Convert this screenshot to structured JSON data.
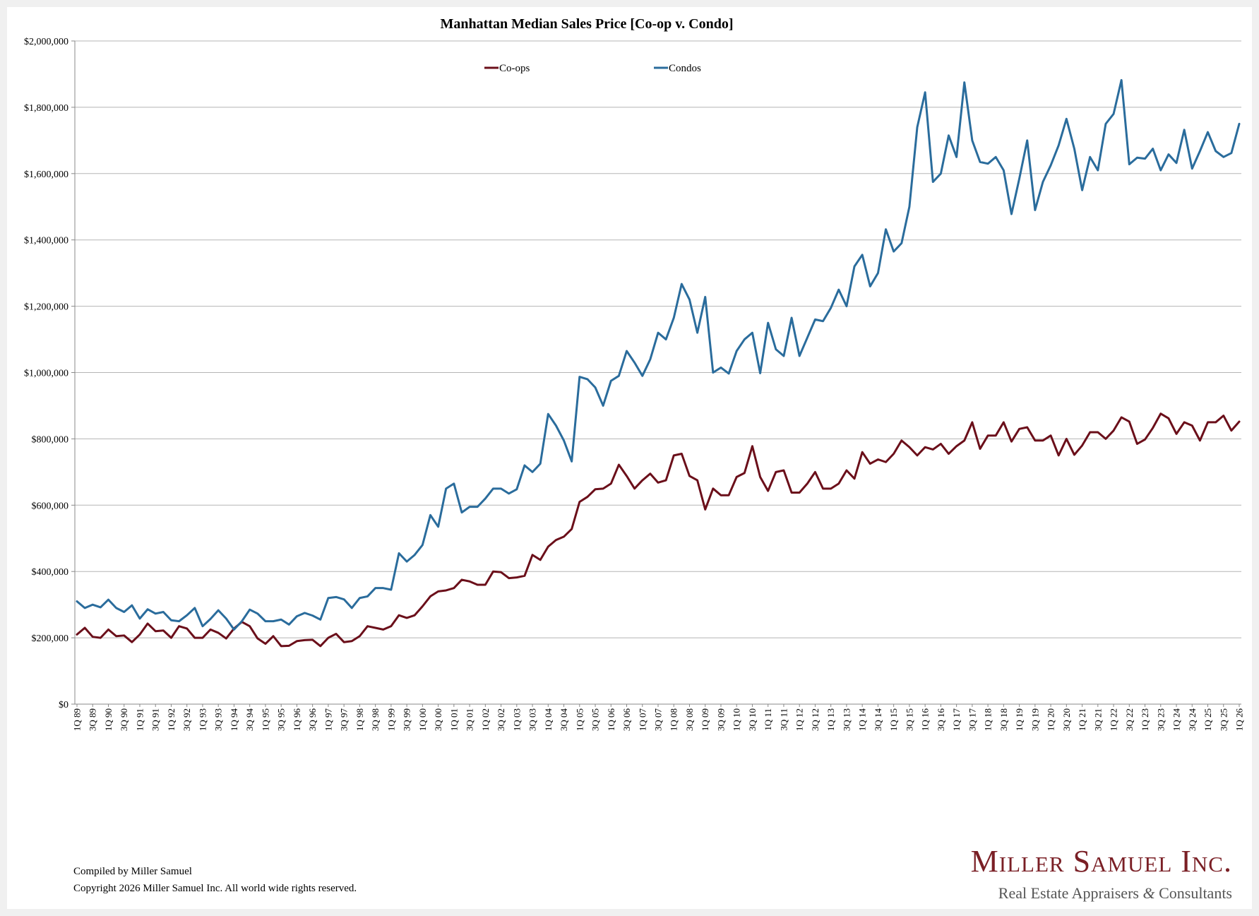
{
  "chart_data": {
    "type": "line",
    "title": "Manhattan Median Sales Price [Co-op v. Condo]",
    "xlabel": "",
    "ylabel": "",
    "ylim": [
      0,
      2000000
    ],
    "yticks": [
      0,
      200000,
      400000,
      600000,
      800000,
      1000000,
      1200000,
      1400000,
      1600000,
      1800000,
      2000000
    ],
    "ytick_labels": [
      "$0",
      "$200,000",
      "$400,000",
      "$600,000",
      "$800,000",
      "$1,000,000",
      "$1,200,000",
      "$1,400,000",
      "$1,600,000",
      "$1,800,000",
      "$2,000,000"
    ],
    "grid": true,
    "legend_position": "top-center",
    "categories": [
      "1Q 89",
      "2Q 89",
      "3Q 89",
      "4Q 89",
      "1Q 90",
      "2Q 90",
      "3Q 90",
      "4Q 90",
      "1Q 91",
      "2Q 91",
      "3Q 91",
      "4Q 91",
      "1Q 92",
      "2Q 92",
      "3Q 92",
      "4Q 92",
      "1Q 93",
      "2Q 93",
      "3Q 93",
      "4Q 93",
      "1Q 94",
      "2Q 94",
      "3Q 94",
      "4Q 94",
      "1Q 95",
      "2Q 95",
      "3Q 95",
      "4Q 95",
      "1Q 96",
      "2Q 96",
      "3Q 96",
      "4Q 96",
      "1Q 97",
      "2Q 97",
      "3Q 97",
      "4Q 97",
      "1Q 98",
      "2Q 98",
      "3Q 98",
      "4Q 98",
      "1Q 99",
      "2Q 99",
      "3Q 99",
      "4Q 99",
      "1Q 00",
      "2Q 00",
      "3Q 00",
      "4Q 00",
      "1Q 01",
      "2Q 01",
      "3Q 01",
      "4Q 01",
      "1Q 02",
      "2Q 02",
      "3Q 02",
      "4Q 02",
      "1Q 03",
      "2Q 03",
      "3Q 03",
      "4Q 03",
      "1Q 04",
      "2Q 04",
      "3Q 04",
      "4Q 04",
      "1Q 05",
      "2Q 05",
      "3Q 05",
      "4Q 05",
      "1Q 06",
      "2Q 06",
      "3Q 06",
      "4Q 06",
      "1Q 07",
      "2Q 07",
      "3Q 07",
      "4Q 07",
      "1Q 08",
      "2Q 08",
      "3Q 08",
      "4Q 08",
      "1Q 09",
      "2Q 09",
      "3Q 09",
      "4Q 09",
      "1Q 10",
      "2Q 10",
      "3Q 10",
      "4Q 10",
      "1Q 11",
      "2Q 11",
      "3Q 11",
      "4Q 11",
      "1Q 12",
      "2Q 12",
      "3Q 12",
      "4Q 12",
      "1Q 13",
      "2Q 13",
      "3Q 13",
      "4Q 13",
      "1Q 14",
      "2Q 14",
      "3Q 14",
      "4Q 14",
      "1Q 15",
      "2Q 15",
      "3Q 15",
      "4Q 15",
      "1Q 16",
      "2Q 16",
      "3Q 16",
      "4Q 16",
      "1Q 17",
      "2Q 17",
      "3Q 17",
      "4Q 17",
      "1Q 18",
      "2Q 18",
      "3Q 18",
      "4Q 18",
      "1Q 19",
      "2Q 19",
      "3Q 19",
      "4Q 19",
      "1Q 20",
      "2Q 20",
      "3Q 20",
      "4Q 20",
      "1Q 21",
      "2Q 21",
      "3Q 21",
      "4Q 21",
      "1Q 22",
      "2Q 22",
      "3Q 22",
      "4Q 22",
      "1Q 23",
      "2Q 23",
      "3Q 23",
      "4Q 23",
      "1Q 24",
      "2Q 24",
      "3Q 24",
      "4Q 24",
      "1Q 25",
      "2Q 25",
      "3Q 25",
      "4Q 25",
      "1Q 26"
    ],
    "tick_label_step": 2,
    "series": [
      {
        "name": "Co-ops",
        "color": "#6b0f1a",
        "values": [
          210000,
          230000,
          203000,
          200000,
          225000,
          205000,
          207000,
          187000,
          210000,
          243000,
          220000,
          222000,
          200000,
          235000,
          228000,
          200000,
          200000,
          225000,
          215000,
          198000,
          228000,
          248000,
          235000,
          198000,
          182000,
          205000,
          175000,
          176000,
          190000,
          193000,
          194000,
          175000,
          200000,
          212000,
          187000,
          190000,
          205000,
          235000,
          230000,
          225000,
          235000,
          268000,
          260000,
          268000,
          295000,
          325000,
          340000,
          343000,
          350000,
          375000,
          370000,
          360000,
          360000,
          400000,
          398000,
          380000,
          382000,
          387000,
          450000,
          435000,
          475000,
          495000,
          505000,
          528000,
          610000,
          625000,
          648000,
          650000,
          665000,
          722000,
          688000,
          650000,
          675000,
          695000,
          668000,
          675000,
          750000,
          755000,
          688000,
          675000,
          587000,
          650000,
          630000,
          630000,
          685000,
          697000,
          778000,
          685000,
          643000,
          700000,
          705000,
          638000,
          638000,
          665000,
          700000,
          650000,
          650000,
          665000,
          705000,
          680000,
          760000,
          725000,
          738000,
          730000,
          755000,
          795000,
          775000,
          750000,
          775000,
          768000,
          785000,
          755000,
          778000,
          795000,
          850000,
          770000,
          810000,
          810000,
          850000,
          792000,
          830000,
          835000,
          795000,
          795000,
          810000,
          750000,
          800000,
          752000,
          780000,
          820000,
          820000,
          800000,
          825000,
          865000,
          852000,
          785000,
          798000,
          833000,
          876000,
          862000,
          815000,
          850000,
          840000,
          795000,
          850000,
          850000,
          870000,
          825000,
          852000
        ]
      },
      {
        "name": "Condos",
        "color": "#2a6c9c",
        "values": [
          310000,
          290000,
          300000,
          292000,
          315000,
          290000,
          278000,
          298000,
          258000,
          286000,
          273000,
          278000,
          253000,
          250000,
          268000,
          290000,
          235000,
          257000,
          283000,
          258000,
          225000,
          250000,
          285000,
          273000,
          250000,
          250000,
          255000,
          240000,
          265000,
          275000,
          267000,
          255000,
          320000,
          323000,
          316000,
          290000,
          320000,
          325000,
          350000,
          350000,
          345000,
          455000,
          430000,
          450000,
          480000,
          570000,
          535000,
          650000,
          665000,
          578000,
          595000,
          595000,
          620000,
          650000,
          650000,
          635000,
          648000,
          720000,
          700000,
          725000,
          875000,
          840000,
          795000,
          732000,
          987000,
          980000,
          955000,
          900000,
          975000,
          990000,
          1065000,
          1030000,
          990000,
          1040000,
          1120000,
          1100000,
          1165000,
          1267000,
          1220000,
          1120000,
          1228000,
          1000000,
          1015000,
          997000,
          1065000,
          1100000,
          1120000,
          998000,
          1150000,
          1070000,
          1050000,
          1165000,
          1050000,
          1105000,
          1160000,
          1155000,
          1195000,
          1250000,
          1200000,
          1320000,
          1355000,
          1260000,
          1300000,
          1432000,
          1365000,
          1390000,
          1500000,
          1740000,
          1845000,
          1575000,
          1600000,
          1715000,
          1650000,
          1875000,
          1700000,
          1635000,
          1630000,
          1650000,
          1610000,
          1478000,
          1585000,
          1700000,
          1490000,
          1575000,
          1625000,
          1685000,
          1765000,
          1675000,
          1550000,
          1650000,
          1610000,
          1750000,
          1780000,
          1882000,
          1628000,
          1648000,
          1645000,
          1675000,
          1610000,
          1658000,
          1632000,
          1732000,
          1615000,
          1668000,
          1725000,
          1668000,
          1650000,
          1662000,
          1750000
        ]
      }
    ]
  },
  "footer": {
    "compiled_by": "Compiled by Miller Samuel",
    "copyright": "Copyright 2026 Miller Samuel Inc.  All world wide rights reserved."
  },
  "logo": {
    "name": "Miller Samuel Inc.",
    "tagline_a": "Real Estate Appraisers",
    "tagline_amp": "&",
    "tagline_b": "Consultants"
  }
}
